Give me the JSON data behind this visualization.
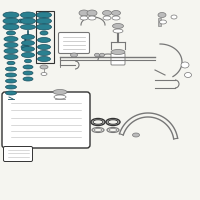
{
  "bg_color": "#f5f5f0",
  "teal": "#2a8090",
  "dark_teal": "#1a5060",
  "teal2": "#3a9aaa",
  "gray": "#777777",
  "dark": "#333333",
  "light_gray": "#bbbbbb",
  "mid_gray": "#999999"
}
